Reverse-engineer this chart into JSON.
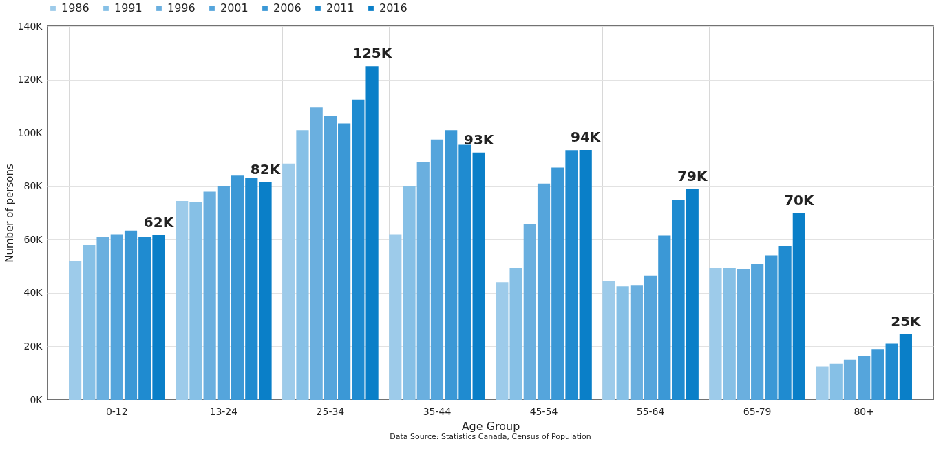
{
  "chart_data": {
    "type": "bar",
    "xlabel": "Age Group",
    "ylabel": "Number of persons",
    "annotations": [
      "Data Source: Statistics Canada, Census of Population"
    ],
    "categories": [
      "0-12",
      "13-24",
      "25-34",
      "35-44",
      "45-54",
      "55-64",
      "65-79",
      "80+"
    ],
    "series": [
      {
        "name": "1986",
        "color": "#9dcbea",
        "values": [
          52,
          74.5,
          88.5,
          62,
          44,
          44.5,
          49.5,
          12.5
        ]
      },
      {
        "name": "1991",
        "color": "#86c0e6",
        "values": [
          58,
          74,
          101,
          80,
          49.5,
          42.5,
          49.5,
          13.5
        ]
      },
      {
        "name": "1996",
        "color": "#6aafdf",
        "values": [
          61,
          78,
          109.5,
          89,
          66,
          43,
          49,
          15
        ]
      },
      {
        "name": "2001",
        "color": "#55a5dc",
        "values": [
          62,
          80,
          106.5,
          97.5,
          81,
          46.5,
          51,
          16.5
        ]
      },
      {
        "name": "2006",
        "color": "#3b98d6",
        "values": [
          63.5,
          84,
          103.5,
          101,
          87,
          61.5,
          54,
          19
        ]
      },
      {
        "name": "2011",
        "color": "#1f8bd0",
        "values": [
          61,
          83,
          112.5,
          95.5,
          93.5,
          75,
          57.5,
          21
        ]
      },
      {
        "name": "2016",
        "color": "#0a7fc8",
        "values": [
          61.6,
          81.6,
          125,
          92.6,
          93.6,
          79,
          70,
          24.6
        ],
        "value_labels": [
          "62K",
          "82K",
          "125K",
          "93K",
          "94K",
          "79K",
          "70K",
          "25K"
        ]
      }
    ],
    "ylim": [
      0,
      140
    ],
    "yticks": [
      {
        "value": 0,
        "label": "0K"
      },
      {
        "value": 20,
        "label": "20K"
      },
      {
        "value": 40,
        "label": "40K"
      },
      {
        "value": 60,
        "label": "60K"
      },
      {
        "value": 80,
        "label": "80K"
      },
      {
        "value": 100,
        "label": "100K"
      },
      {
        "value": 120,
        "label": "120K"
      },
      {
        "value": 140,
        "label": "140K"
      }
    ],
    "grid": true,
    "legend": "top"
  }
}
